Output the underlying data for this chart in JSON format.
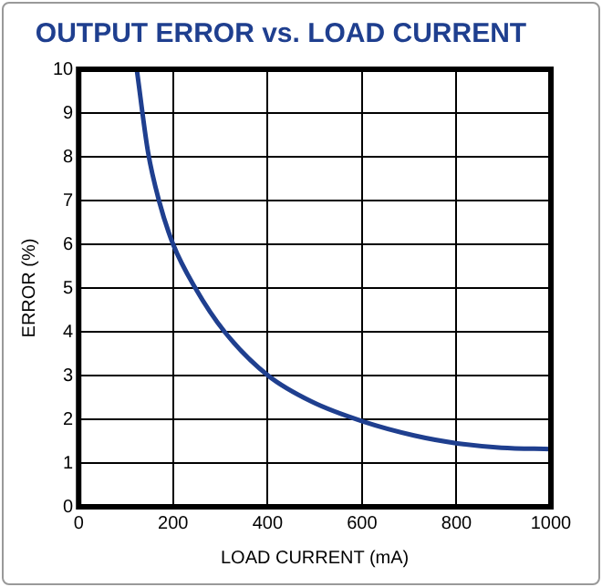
{
  "chart_data": {
    "type": "line",
    "title": "OUTPUT ERROR vs. LOAD CURRENT",
    "xlabel": "LOAD CURRENT (mA)",
    "ylabel": "ERROR (%)",
    "x": [
      123,
      147,
      170,
      200,
      247,
      309,
      401,
      494,
      602,
      710,
      802,
      895,
      1000
    ],
    "series": [
      {
        "color": "#1f3f8f",
        "values": [
          10,
          8.1,
          7.0,
          6.0,
          5.0,
          4.0,
          3.0,
          2.4,
          1.95,
          1.63,
          1.45,
          1.35,
          1.32
        ]
      }
    ],
    "xlim": [
      0,
      1000
    ],
    "xticks": [
      0,
      200,
      400,
      600,
      800,
      1000
    ],
    "ylim": [
      0,
      10
    ],
    "yticks": [
      0,
      1,
      2,
      3,
      4,
      5,
      6,
      7,
      8,
      9,
      10
    ],
    "grid": true,
    "legend": false,
    "marker": "none",
    "line_style": "solid"
  }
}
